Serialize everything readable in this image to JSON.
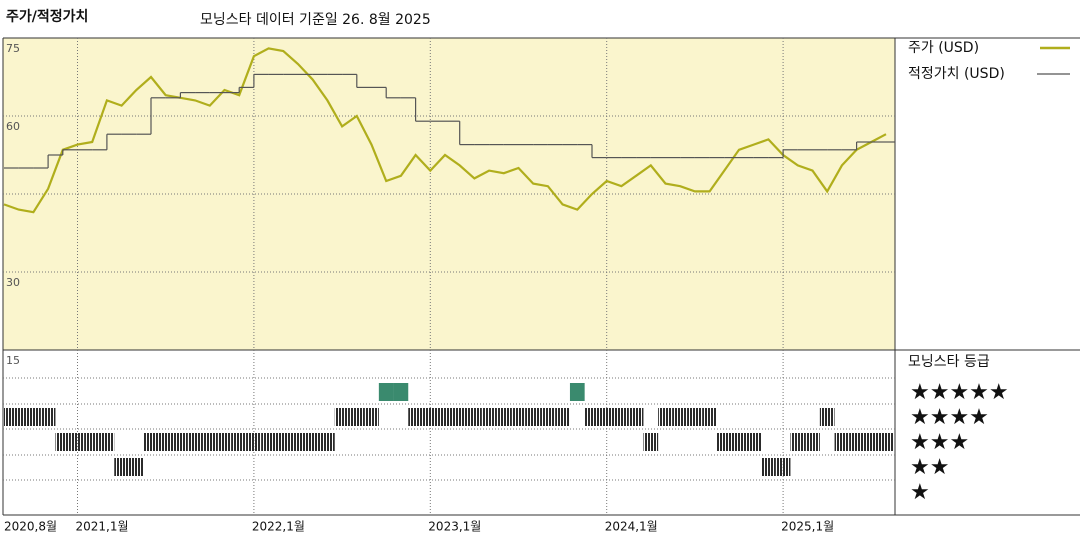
{
  "chart_data": {
    "type": "line",
    "title": "주가/적정가치",
    "subtitle": "모닝스타 데이터 기준일 26. 8월 2025",
    "x": [
      "2020-08",
      "2020-09",
      "2020-10",
      "2020-11",
      "2020-12",
      "2021-01",
      "2021-02",
      "2021-03",
      "2021-04",
      "2021-05",
      "2021-06",
      "2021-07",
      "2021-08",
      "2021-09",
      "2021-10",
      "2021-11",
      "2021-12",
      "2022-01",
      "2022-02",
      "2022-03",
      "2022-04",
      "2022-05",
      "2022-06",
      "2022-07",
      "2022-08",
      "2022-09",
      "2022-10",
      "2022-11",
      "2022-12",
      "2023-01",
      "2023-02",
      "2023-03",
      "2023-04",
      "2023-05",
      "2023-06",
      "2023-07",
      "2023-08",
      "2023-09",
      "2023-10",
      "2023-11",
      "2023-12",
      "2024-01",
      "2024-02",
      "2024-03",
      "2024-04",
      "2024-05",
      "2024-06",
      "2024-07",
      "2024-08",
      "2024-09",
      "2024-10",
      "2024-11",
      "2024-12",
      "2025-01",
      "2025-02",
      "2025-03",
      "2025-04",
      "2025-05",
      "2025-06",
      "2025-07",
      "2025-08"
    ],
    "xticks": [
      {
        "value": "2020-08",
        "label": "2020,8월"
      },
      {
        "value": "2021-01",
        "label": "2021,1월"
      },
      {
        "value": "2022-01",
        "label": "2022,1월"
      },
      {
        "value": "2023-01",
        "label": "2023,1월"
      },
      {
        "value": "2024-01",
        "label": "2024,1월"
      },
      {
        "value": "2025-01",
        "label": "2025,1월"
      }
    ],
    "ylim": [
      15,
      75
    ],
    "yticks": [
      15,
      30,
      60,
      75
    ],
    "gridlines": [
      30,
      45,
      60
    ],
    "background": "#faf5cd",
    "series": [
      {
        "name": "주가 (USD)",
        "color": "#b0ae1c",
        "values": [
          43,
          42,
          41.5,
          46,
          53.5,
          54.5,
          55,
          63,
          62,
          65,
          67.5,
          64,
          63.5,
          63,
          62,
          65,
          64,
          71.5,
          73,
          72.5,
          70,
          67,
          63,
          58,
          60,
          54.5,
          47.5,
          48.5,
          52.5,
          49.5,
          52.5,
          50.5,
          48,
          49.5,
          49,
          50,
          47,
          46.5,
          43,
          42,
          45,
          47.5,
          46.5,
          48.5,
          50.5,
          47,
          46.5,
          45.5,
          45.5,
          49.5,
          53.5,
          54.5,
          55.5,
          52.5,
          50.5,
          49.5,
          45.5,
          50.5,
          53.5,
          55,
          56.5
        ]
      },
      {
        "name": "적정가치 (USD)",
        "color": "#555555",
        "step": true,
        "values": [
          50,
          50,
          50,
          52.5,
          53.5,
          53.5,
          53.5,
          56.5,
          56.5,
          56.5,
          63.5,
          63.5,
          64.5,
          64.5,
          64.5,
          64.5,
          65.5,
          68,
          68,
          68,
          68,
          68,
          68,
          68,
          65.5,
          65.5,
          63.5,
          63.5,
          59,
          59,
          59,
          54.5,
          54.5,
          54.5,
          54.5,
          54.5,
          54.5,
          54.5,
          54.5,
          54.5,
          52,
          52,
          52,
          52,
          52,
          52,
          52,
          52,
          52,
          52,
          52,
          52,
          52,
          53.5,
          53.5,
          53.5,
          53.5,
          53.5,
          55,
          55,
          55
        ]
      }
    ],
    "rating": {
      "title": "모닝스타 등급",
      "levels": [
        {
          "value": 5,
          "label": "★★★★★"
        },
        {
          "value": 4,
          "label": "★★★★"
        },
        {
          "value": 3,
          "label": "★★★"
        },
        {
          "value": 2,
          "label": "★★"
        },
        {
          "value": 1,
          "label": "★"
        }
      ],
      "color": "#2b2b2b",
      "top_color": "#3a8a6e",
      "values": [
        4,
        4,
        4,
        4,
        3,
        3,
        3,
        3,
        2,
        2,
        3,
        3,
        3,
        3,
        3,
        3,
        3,
        3,
        3,
        3,
        3,
        3,
        3,
        4,
        4,
        4,
        5,
        5,
        4,
        4,
        4,
        4,
        4,
        4,
        4,
        4,
        4,
        4,
        4,
        5,
        4,
        4,
        4,
        4,
        3,
        4,
        4,
        4,
        4,
        3,
        3,
        3,
        2,
        2,
        3,
        3,
        4,
        3,
        3,
        3,
        3
      ]
    }
  }
}
